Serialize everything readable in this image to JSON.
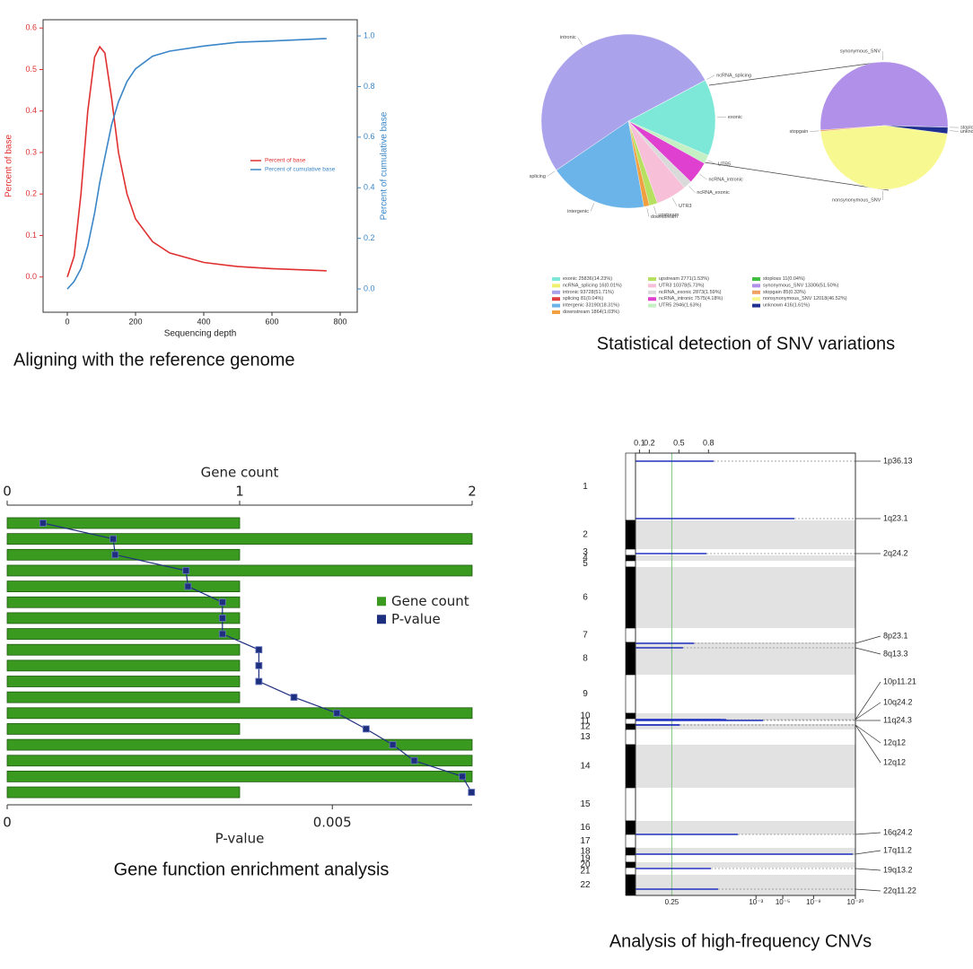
{
  "chart_data": [
    {
      "type": "line",
      "caption": "Aligning with the reference genome",
      "xlabel": "Sequencing depth",
      "ylabel": "Percent of base",
      "y2label": "Percent of cumulative base",
      "x": [
        0,
        20,
        40,
        60,
        80,
        95,
        110,
        130,
        150,
        175,
        200,
        250,
        300,
        400,
        500,
        600,
        760
      ],
      "series": [
        {
          "name": "Percent of base",
          "color": "#e03030",
          "values": [
            0,
            0.05,
            0.2,
            0.4,
            0.53,
            0.555,
            0.54,
            0.43,
            0.3,
            0.2,
            0.14,
            0.085,
            0.058,
            0.035,
            0.025,
            0.02,
            0.015
          ]
        },
        {
          "name": "Percent of cumulative base",
          "color": "#3a86c8",
          "axis": "y2",
          "values": [
            0,
            0.03,
            0.08,
            0.17,
            0.3,
            0.42,
            0.52,
            0.65,
            0.74,
            0.82,
            0.87,
            0.92,
            0.94,
            0.96,
            0.975,
            0.98,
            0.99
          ]
        }
      ],
      "xlim": [
        -71,
        850
      ],
      "xticks": [
        0,
        200,
        400,
        600,
        800
      ],
      "ylim": [
        -0.085,
        0.62
      ],
      "yticks": [
        {
          "value": 0,
          "label": "0.0"
        },
        0.1,
        0.2,
        0.3,
        0.4,
        0.5,
        0.6
      ],
      "y2lim": [
        -0.092,
        1.064
      ],
      "y2ticks": [
        {
          "value": 0,
          "label": "0.0"
        },
        0.2,
        0.4,
        0.6,
        0.8,
        {
          "value": 1,
          "label": "1.0"
        }
      ],
      "legend": "center-right"
    },
    {
      "type": "pie",
      "caption": "Statistical detection of SNV variations",
      "categories": [
        "exonic",
        "ncRNA_splicing",
        "intronic",
        "splicing",
        "intergenic",
        "downstream",
        "upstream",
        "UTR3",
        "ncRNA_exonic",
        "ncRNA_intronic",
        "UTR5"
      ],
      "values": [
        14.23,
        0.01,
        51.71,
        0.04,
        18.31,
        1.03,
        1.53,
        5.73,
        1.59,
        4.18,
        1.63
      ],
      "value_labels": [
        "25836(14.23%)",
        "16(0.01%)",
        "93728(51.71%)",
        "81(0.04%)",
        "33190(18.31%)",
        "1864(1.03%)",
        "2771(1.53%)",
        "10378(5.73%)",
        "2873(1.59%)",
        "7575(4.18%)",
        "2946(1.63%)"
      ],
      "colors": [
        "#7de8d8",
        "#eef070",
        "#aaa2ea",
        "#e04040",
        "#6ab4ea",
        "#f0a040",
        "#b8e060",
        "#f8c0d8",
        "#dadada",
        "#e040d0",
        "#c4f0c4"
      ]
    },
    {
      "type": "pie",
      "categories": [
        "stoploss",
        "synonymous_SNV",
        "stopgain",
        "nonsynonymous_SNV",
        "unknown"
      ],
      "values": [
        0.04,
        51.5,
        0.33,
        46.52,
        1.61
      ],
      "value_labels": [
        "11(0.04%)",
        "13306(51.50%)",
        "85(0.33%)",
        "12018(46.52%)",
        "416(1.61%)"
      ],
      "colors": [
        "#40c040",
        "#b090e8",
        "#f0a060",
        "#f8f890",
        "#203090"
      ]
    },
    {
      "type": "bar",
      "orientation": "horizontal",
      "caption": "Gene function enrichment analysis",
      "xlabel": "Gene count",
      "x2label": "P-value",
      "categories": [
        null,
        null,
        null,
        null,
        null,
        null,
        null,
        null,
        null,
        null,
        null,
        null,
        null,
        null,
        null,
        null,
        null,
        null
      ],
      "series": [
        {
          "name": "Gene count",
          "color": "#3a9a20",
          "values": [
            1,
            2,
            1,
            2,
            1,
            1,
            1,
            1,
            1,
            1,
            1,
            1,
            2,
            1,
            2,
            2,
            2,
            1
          ]
        },
        {
          "name": "P-value",
          "color": "#1f2f80",
          "axis": "x2",
          "values": [
            0.00055,
            0.00163,
            0.00166,
            0.00275,
            0.00278,
            0.00331,
            0.00331,
            0.00331,
            0.00387,
            0.00387,
            0.00387,
            0.00441,
            0.00507,
            0.00552,
            0.00593,
            0.00626,
            0.007,
            0.00714
          ]
        }
      ],
      "xlim": [
        0,
        2
      ],
      "xticks": [
        0,
        1,
        2
      ],
      "x2lim": [
        0,
        0.00715
      ],
      "x2ticks": [
        0,
        0.005
      ],
      "legend": "right"
    },
    {
      "type": "cnv",
      "caption": "Analysis of high-frequency CNVs",
      "chromosomes": [
        "1",
        "2",
        "3",
        "4",
        "5",
        "6",
        "7",
        "8",
        "9",
        "10",
        "11",
        "12",
        "13",
        "14",
        "15",
        "16",
        "17",
        "18",
        "19",
        "20",
        "21",
        "22"
      ],
      "categories": [
        "1p36.13",
        "1q23.1",
        "2q24.2",
        "8p23.1",
        "8q13.3",
        "10p11.21",
        "10q24.2",
        "11q24.3",
        "12q12",
        "12q12",
        "16q24.2",
        "17q11.2",
        "19q13.2",
        "22q11.22"
      ],
      "values": [
        0.046,
        5.8e-07,
        0.068,
        0.12,
        0.18,
        0.03,
        0.02,
        0.00037,
        0.2,
        0.2,
        0.0076,
        1e-19,
        0.054,
        0.035
      ],
      "color": "#2030c0",
      "xlim": [
        0.06,
        2.29
      ],
      "xticks": [
        0.1,
        0.2,
        0.5,
        0.8
      ],
      "x2lim": [
        0.5,
        1e-20
      ],
      "x2scale": "log-log",
      "x2ticks": [
        0.25,
        {
          "value": 0.001,
          "label": "10⁻³"
        },
        {
          "value": 1e-05,
          "label": "10⁻⁵"
        },
        {
          "value": 1e-09,
          "label": "10⁻⁹"
        },
        {
          "value": 1e-20,
          "label": "10⁻²⁰"
        }
      ]
    }
  ]
}
